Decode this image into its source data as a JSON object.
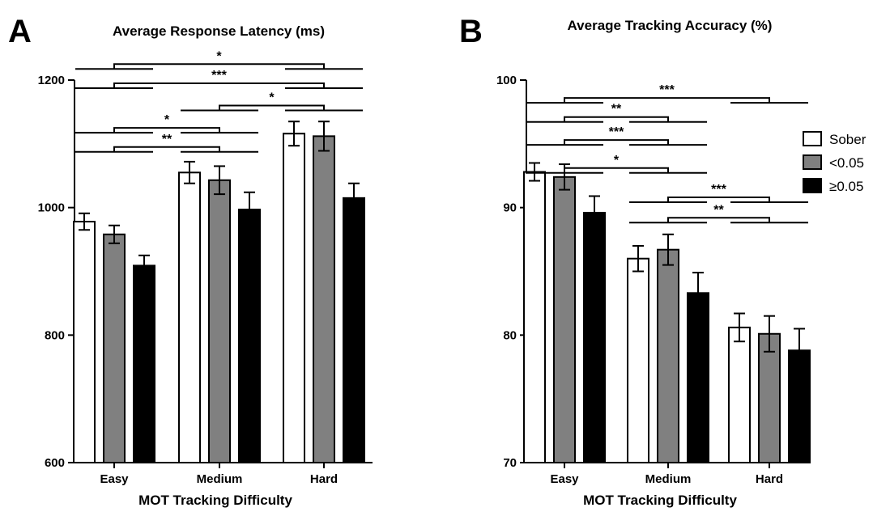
{
  "figure_colors": {
    "Sober": "#ffffff",
    "<0.05": "#808080",
    "≥0.05": "#000000"
  },
  "legend": {
    "location": "right, upper-middle of panel B",
    "entries": [
      "Sober",
      "<0.05",
      "≥0.05"
    ]
  },
  "chart_data": [
    {
      "panel_label": "A",
      "type": "bar",
      "title": "Average Response Latency (ms)",
      "xlabel": "MOT Tracking Difficulty",
      "ylabel": "",
      "ylim": [
        600,
        1200
      ],
      "yticks": [
        600,
        800,
        1000,
        1200
      ],
      "categories": [
        "Easy",
        "Medium",
        "Hard"
      ],
      "series": [
        {
          "name": "Sober",
          "values": [
            978,
            1055,
            1116
          ],
          "errors": [
            13,
            17,
            19
          ]
        },
        {
          "name": "<0.05",
          "values": [
            958,
            1043,
            1112
          ],
          "errors": [
            14,
            22,
            23
          ]
        },
        {
          "name": "≥0.05",
          "values": [
            909,
            997,
            1015
          ],
          "errors": [
            16,
            27,
            23
          ]
        }
      ],
      "significance": [
        {
          "label": "*",
          "between": [
            "Easy",
            "Hard"
          ],
          "y_data": 1225
        },
        {
          "label": "***",
          "between": [
            "Easy",
            "Hard"
          ],
          "y_data": 1195
        },
        {
          "label": "*",
          "between": [
            "Medium",
            "Hard"
          ],
          "y_data": 1160
        },
        {
          "label": "*",
          "between": [
            "Easy",
            "Medium"
          ],
          "y_data": 1125
        },
        {
          "label": "**",
          "between": [
            "Easy",
            "Medium"
          ],
          "y_data": 1095
        }
      ]
    },
    {
      "panel_label": "B",
      "type": "bar",
      "title": "Average Tracking Accuracy (%)",
      "xlabel": "MOT Tracking Difficulty",
      "ylabel": "",
      "ylim": [
        70,
        100
      ],
      "yticks": [
        70,
        80,
        90,
        100
      ],
      "categories": [
        "Easy",
        "Medium",
        "Hard"
      ],
      "series": [
        {
          "name": "Sober",
          "values": [
            92.8,
            86.0,
            80.6
          ],
          "errors": [
            0.7,
            1.0,
            1.1
          ]
        },
        {
          "name": "<0.05",
          "values": [
            92.4,
            86.7,
            80.1
          ],
          "errors": [
            1.0,
            1.2,
            1.4
          ]
        },
        {
          "name": "≥0.05",
          "values": [
            89.6,
            83.3,
            78.8
          ],
          "errors": [
            1.3,
            1.6,
            1.7
          ]
        }
      ],
      "significance": [
        {
          "label": "***",
          "between": [
            "Easy",
            "Hard"
          ],
          "y_data": 98.6
        },
        {
          "label": "**",
          "between": [
            "Easy",
            "Medium"
          ],
          "y_data": 97.1
        },
        {
          "label": "***",
          "between": [
            "Easy",
            "Medium"
          ],
          "y_data": 95.3
        },
        {
          "label": "*",
          "between": [
            "Easy",
            "Medium"
          ],
          "y_data": 93.1
        },
        {
          "label": "***",
          "between": [
            "Medium",
            "Hard"
          ],
          "y_data": 90.8
        },
        {
          "label": "**",
          "between": [
            "Medium",
            "Hard"
          ],
          "y_data": 89.2
        }
      ]
    }
  ]
}
